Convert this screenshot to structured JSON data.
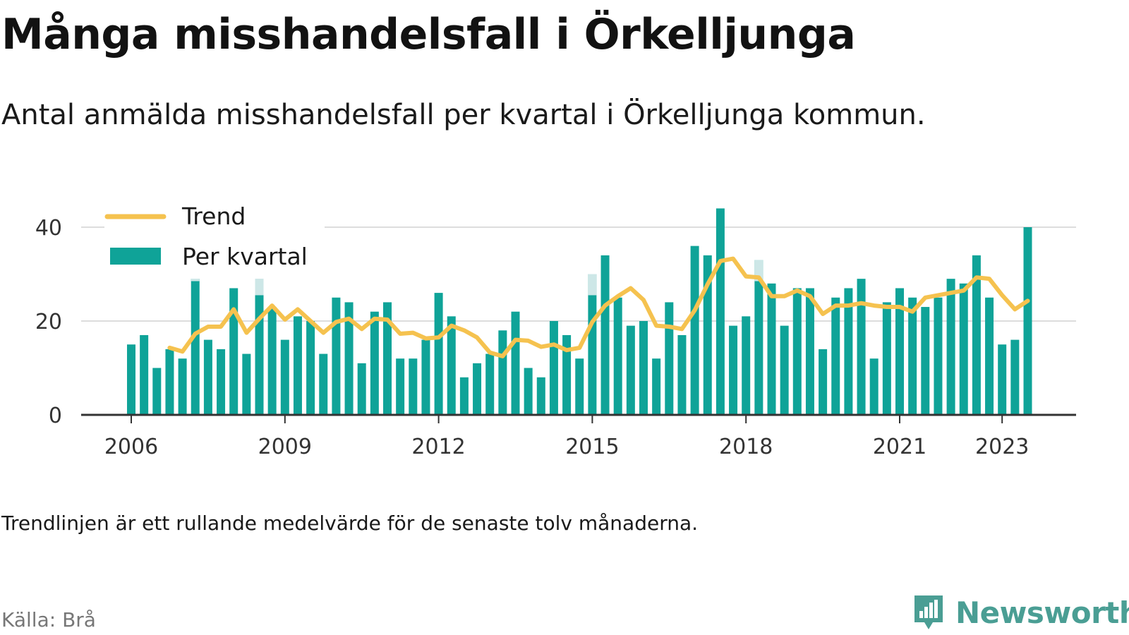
{
  "title": "Många misshandelsfall i Örkelljunga",
  "subtitle": "Antal anmälda misshandelsfall per kvartal i Örkelljunga kommun.",
  "note": "Trendlinjen är ett rullande medelvärde för de senaste tolv månaderna.",
  "source": "Källa: Brå",
  "brand": {
    "name": "Newsworthy",
    "icon": "newsworthy-logo-icon"
  },
  "colors": {
    "bars": "#0fa398",
    "trend": "#f5c24f",
    "highlight_bars": "#cde7e7",
    "gridline": "#dddddd",
    "axis": "#333333"
  },
  "chart_data": {
    "type": "bar",
    "x_unit": "quarter",
    "x_start": "2006 Q1",
    "x_end": "2023 Q3",
    "xticks": [
      "2006",
      "2009",
      "2012",
      "2015",
      "2018",
      "2021",
      "2023"
    ],
    "yticks": [
      "0",
      "20",
      "40"
    ],
    "ylim": [
      0,
      44
    ],
    "grid": true,
    "legend": {
      "placement": "top-left",
      "items": [
        "Trend",
        "Per kvartal"
      ]
    },
    "series": [
      {
        "name": "Per kvartal",
        "type": "bar",
        "values": [
          15,
          17,
          10,
          14,
          12,
          33,
          16,
          14,
          27,
          13,
          30,
          23,
          16,
          21,
          20,
          13,
          25,
          24,
          11,
          22,
          24,
          12,
          12,
          16,
          26,
          21,
          8,
          11,
          13,
          18,
          22,
          10,
          8,
          20,
          17,
          12,
          30,
          34,
          25,
          19,
          20,
          12,
          24,
          17,
          36,
          34,
          44,
          19,
          21,
          33,
          28,
          19,
          27,
          27,
          14,
          25,
          27,
          29,
          12,
          24,
          27,
          25,
          23,
          25,
          29,
          28,
          34,
          25,
          15,
          16,
          40
        ],
        "highlighted": [
          33,
          30
        ],
        "highlighted_note": "two bars extend past the legend box in a paler tint"
      },
      {
        "name": "Trend",
        "type": "line",
        "values": [
          null,
          null,
          null,
          14.3,
          13.5,
          17.3,
          18.8,
          18.8,
          22.5,
          17.5,
          20.5,
          23.3,
          20.3,
          22.5,
          20.0,
          17.5,
          19.8,
          20.5,
          18.3,
          20.5,
          20.3,
          17.3,
          17.5,
          16.3,
          16.5,
          19.0,
          18.0,
          16.5,
          13.3,
          12.5,
          16.0,
          15.8,
          14.5,
          15.0,
          13.8,
          14.3,
          19.8,
          23.3,
          25.3,
          27.0,
          24.5,
          19.0,
          18.8,
          18.3,
          22.3,
          27.8,
          32.8,
          33.3,
          29.5,
          29.3,
          25.3,
          25.3,
          26.5,
          25.3,
          21.5,
          23.3,
          23.3,
          23.8,
          23.3,
          23.0,
          23.0,
          22.0,
          25.0,
          25.5,
          26.0,
          26.5,
          29.3,
          29.0,
          25.5,
          22.5,
          24.3
        ]
      }
    ]
  }
}
